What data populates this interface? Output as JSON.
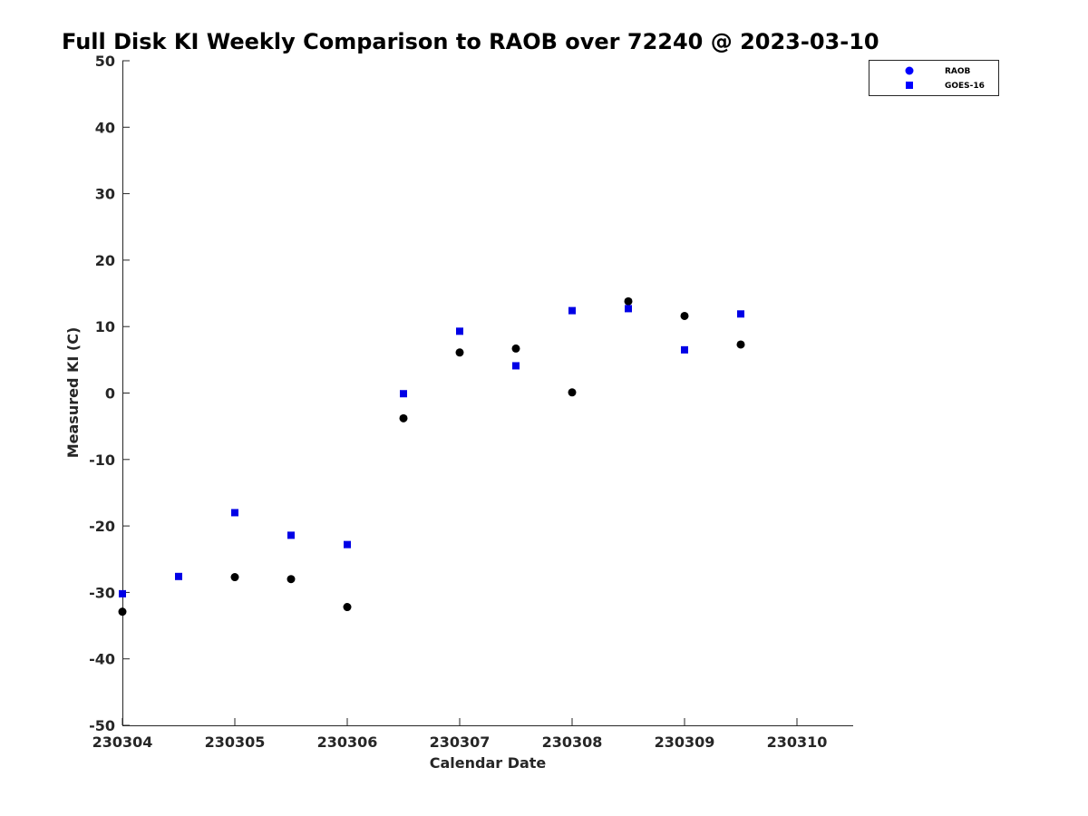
{
  "chart_data": {
    "type": "scatter",
    "title": "Full Disk KI Weekly Comparison to RAOB over 72240 @ 2023-03-10",
    "xlabel": "Calendar Date",
    "ylabel": "Measured KI (C)",
    "xlim": [
      230304,
      230310.5
    ],
    "ylim": [
      -50,
      50
    ],
    "xticks": [
      230304,
      230305,
      230306,
      230307,
      230308,
      230309,
      230310
    ],
    "xtick_labels": [
      "230304",
      "230305",
      "230306",
      "230307",
      "230308",
      "230309",
      "230310"
    ],
    "yticks": [
      50,
      40,
      30,
      20,
      10,
      0,
      -10,
      -20,
      -30,
      -40,
      -50
    ],
    "ytick_labels": [
      "50",
      "40",
      "30",
      "20",
      "10",
      "0",
      "-10",
      "-20",
      "-30",
      "-40",
      "-50"
    ],
    "grid": false,
    "legend_position": "top-right",
    "legend_icon_color": "#0000ff",
    "series": [
      {
        "name": "RAOB",
        "marker": "circle",
        "color": "#000000",
        "x": [
          230304,
          230305,
          230305.5,
          230306,
          230306.5,
          230307,
          230307.5,
          230308,
          230308.5,
          230309,
          230309.5
        ],
        "y": [
          -32.9,
          -27.7,
          -28,
          -32.2,
          -3.8,
          6.1,
          6.7,
          0.1,
          13.8,
          11.6,
          7.3
        ]
      },
      {
        "name": "GOES-16",
        "marker": "square",
        "color": "#0000e6",
        "x": [
          230304,
          230304.5,
          230305,
          230305.5,
          230306,
          230306.5,
          230307,
          230307.5,
          230308,
          230308.5,
          230309,
          230309.5
        ],
        "y": [
          -30.2,
          -27.6,
          -18,
          -21.4,
          -22.8,
          -0.1,
          9.3,
          4.1,
          12.4,
          12.7,
          6.5,
          11.9
        ]
      }
    ]
  }
}
